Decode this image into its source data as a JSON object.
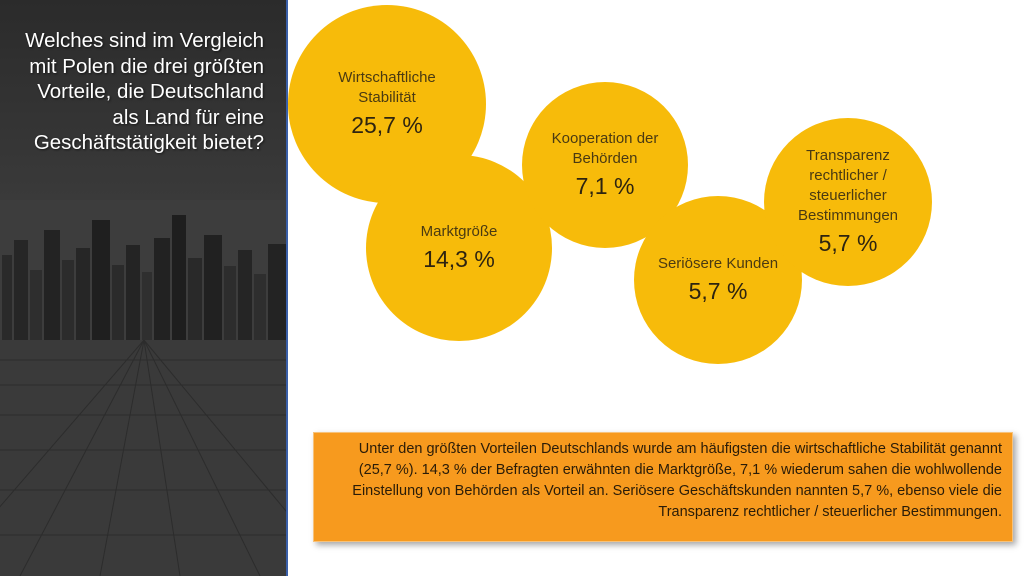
{
  "question": "Welches sind im Vergleich mit Polen die drei größten Vorteile, die Deutschland als Land für eine Geschäftstätigkeit bietet?",
  "bubbles": [
    {
      "label": "Wirtschaftliche Stabilität",
      "value": "25,7 %"
    },
    {
      "label": "Marktgröße",
      "value": "14,3 %"
    },
    {
      "label": "Kooperation der Behörden",
      "value": "7,1 %"
    },
    {
      "label": "Seriösere Kunden",
      "value": "5,7 %"
    },
    {
      "label": "Transparenz rechtlicher / steuerlicher Bestimmungen",
      "value": "5,7 %"
    }
  ],
  "colors": {
    "bubble": "#f7bb0a",
    "summary_box": "#f79a1e",
    "divider": "#3a5fa8"
  },
  "summary": "Unter den größten Vorteilen Deutschlands wurde am häufigsten die wirtschaftliche Stabilität genannt (25,7 %). 14,3 % der Befragten erwähnten die Marktgröße, 7,1 % wiederum sahen die wohlwollende Einstellung von Behörden als Vorteil an. Seriösere Geschäftskunden nannten 5,7 %, ebenso viele die Transparenz rechtlicher / steuerlicher Bestimmungen."
}
